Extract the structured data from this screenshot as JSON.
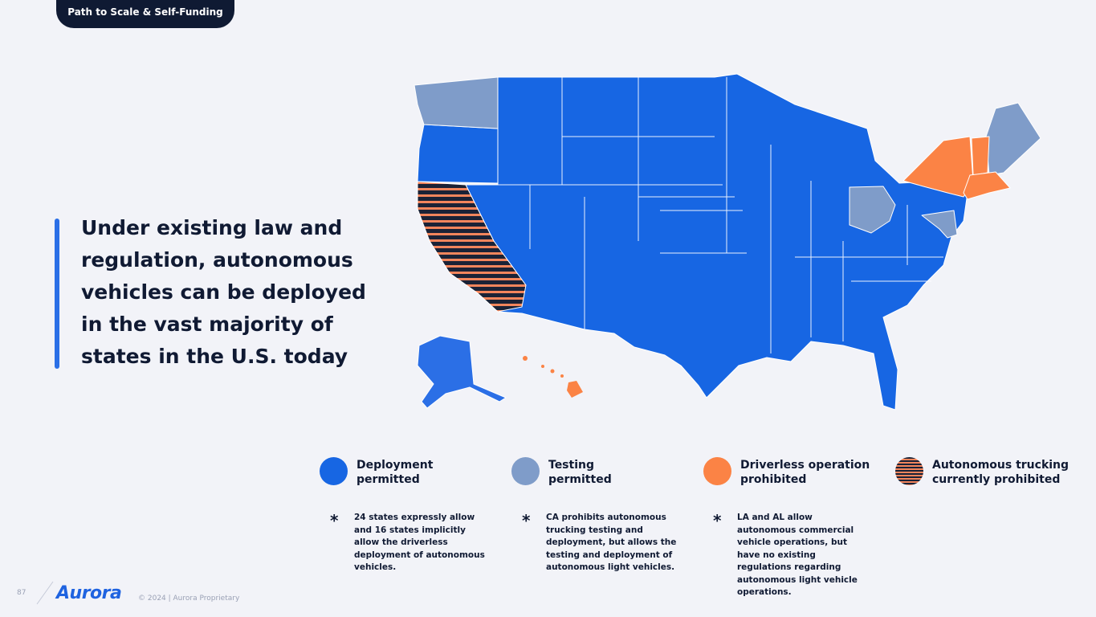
{
  "header": {
    "tag": "Path to Scale & Self-Funding"
  },
  "headline": "Under existing law and regulation, autonomous vehicles can be deployed in the vast majority of states in the U.S. today",
  "colors": {
    "deployment": "#1766e3",
    "testing": "#7f9cc9",
    "driverless_prohibited": "#fb8345",
    "trucking_prohibited_stripe_dark": "#1b2236",
    "trucking_prohibited_stripe_light": "#f2855c",
    "background": "#f2f3f8",
    "navy": "#0f1a33"
  },
  "map": {
    "states_testing_permitted": [
      "Washington",
      "Ohio",
      "New Hampshire",
      "Maine",
      "Maryland",
      "Delaware"
    ],
    "states_driverless_prohibited": [
      "New York",
      "Vermont",
      "Massachusetts",
      "Connecticut",
      "Rhode Island",
      "Hawaii"
    ],
    "states_trucking_prohibited": [
      "California"
    ],
    "states_deployment_permitted": "all other states"
  },
  "legend": [
    {
      "label": "Deployment\npermitted",
      "color_key": "deployment"
    },
    {
      "label": "Testing\npermitted",
      "color_key": "testing"
    },
    {
      "label": "Driverless operation\nprohibited",
      "color_key": "driverless_prohibited"
    },
    {
      "label": "Autonomous trucking\ncurrently prohibited",
      "color_key": "trucking_prohibited"
    }
  ],
  "notes": [
    {
      "star": "*",
      "text": "24 states expressly allow and 16 states implicitly allow the driverless deployment of autonomous vehicles."
    },
    {
      "star": "*",
      "text": "CA prohibits autonomous trucking testing and deployment, but allows the testing and deployment of autonomous light vehicles."
    },
    {
      "star": "*",
      "text": "LA and AL allow autonomous commercial vehicle operations, but have no existing regulations regarding autonomous light vehicle operations."
    }
  ],
  "footer": {
    "page_number": "87",
    "logo": "Aurora",
    "copyright": "© 2024 | Aurora Proprietary"
  }
}
